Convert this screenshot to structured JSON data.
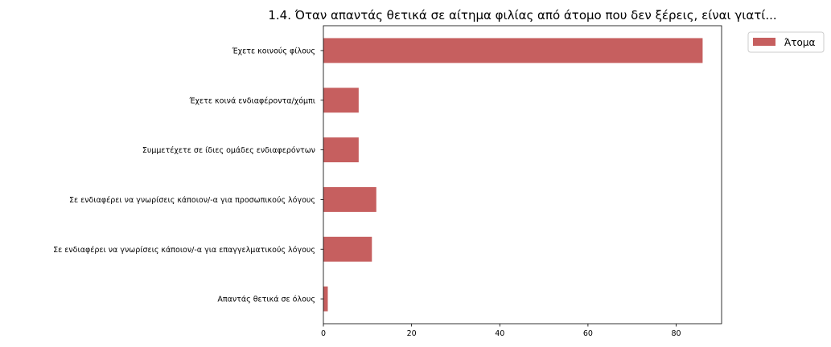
{
  "chart_data": {
    "type": "bar",
    "orientation": "horizontal",
    "title": "1.4. Όταν απαντάς θετικά σε αίτημα φιλίας από άτομο που δεν ξέρεις, είναι γιατί...",
    "xlabel": "",
    "ylabel": "",
    "categories": [
      "Έχετε κοινούς φίλους",
      "Έχετε κοινά ενδιαφέροντα/χόμπι",
      "Συμμετέχετε σε ίδιες ομάδες ενδιαφερόντων",
      "Σε ενδιαφέρει να γνωρίσεις κάποιον/-α για προσωπικούς λόγους",
      "Σε ενδιαφέρει να γνωρίσεις κάποιον/-α για επαγγελματικούς λόγους",
      "Απαντάς θετικά σε όλους"
    ],
    "series": [
      {
        "name": "Άτομα",
        "values": [
          86,
          8,
          8,
          12,
          11,
          1
        ],
        "color": "#c65f5f"
      }
    ],
    "xlim": [
      0,
      90.3
    ],
    "xticks": [
      0,
      20,
      40,
      60,
      80
    ],
    "grid": false,
    "legend_position": "outside-top-right"
  }
}
